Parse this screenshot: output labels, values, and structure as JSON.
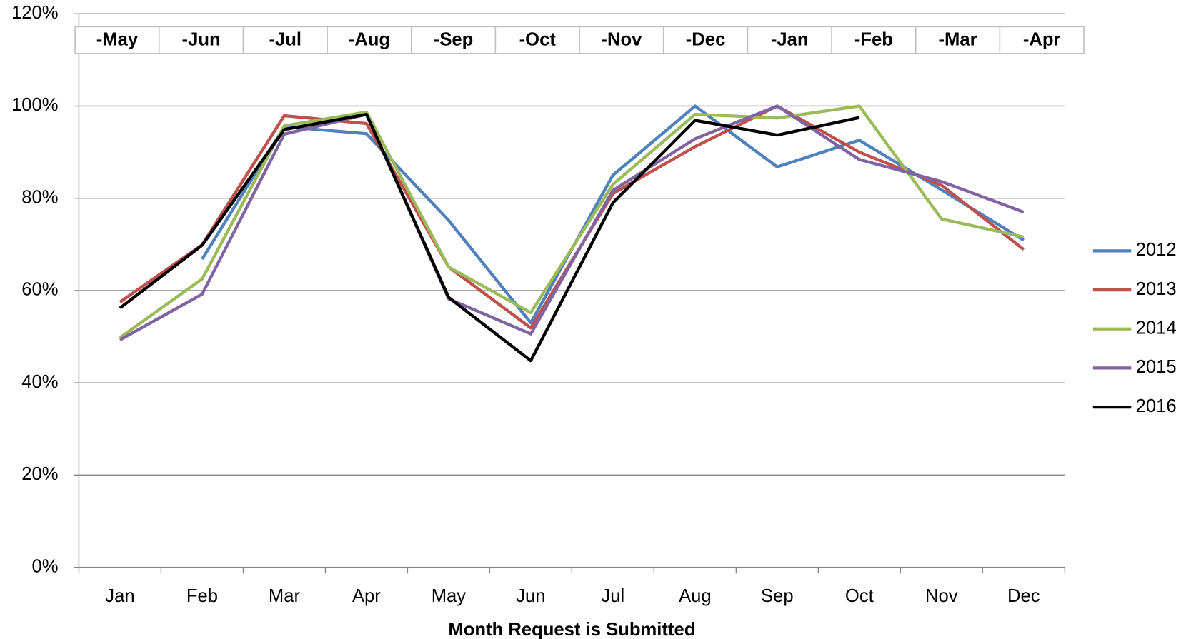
{
  "chart_data": {
    "type": "line",
    "x_label": "Month Request is Submitted",
    "top_labels": [
      "-May",
      "-Jun",
      "-Jul",
      "-Aug",
      "-Sep",
      "-Oct",
      "-Nov",
      "-Dec",
      "-Jan",
      "-Feb",
      "-Mar",
      "-Apr"
    ],
    "categories": [
      "Jan",
      "Feb",
      "Mar",
      "Apr",
      "May",
      "Jun",
      "Jul",
      "Aug",
      "Sep",
      "Oct",
      "Nov",
      "Dec"
    ],
    "series": [
      {
        "name": "2012",
        "color": "#4f81bd",
        "values": [
          null,
          66.8,
          95.5,
          94,
          75.2,
          53,
          85,
          100,
          86.8,
          92.6,
          81.8,
          70.9
        ]
      },
      {
        "name": "2013",
        "color": "#c0504d",
        "values": [
          57.5,
          69.9,
          97.9,
          96.2,
          65.1,
          51.9,
          81,
          91.2,
          100,
          90,
          82.8,
          68.9
        ]
      },
      {
        "name": "2014",
        "color": "#9bbb59",
        "values": [
          49.8,
          62.5,
          95.7,
          98.7,
          65.1,
          55.2,
          83,
          98.2,
          97.4,
          100,
          75.5,
          71.6
        ]
      },
      {
        "name": "2015",
        "color": "#8064a2",
        "values": [
          49.3,
          59.2,
          93.9,
          98.2,
          58.2,
          50.6,
          81.7,
          92.9,
          100,
          88.4,
          83.6,
          77
        ]
      },
      {
        "name": "2016",
        "color": "#000000",
        "values": [
          56.2,
          69.8,
          94.9,
          98.2,
          58.5,
          44.8,
          79,
          96.9,
          93.7,
          97.5,
          null,
          null
        ]
      }
    ],
    "ylim": [
      0,
      120
    ],
    "yticks": [
      {
        "value": 0,
        "label": "0%"
      },
      {
        "value": 20,
        "label": "20%"
      },
      {
        "value": 40,
        "label": "40%"
      },
      {
        "value": 60,
        "label": "60%"
      },
      {
        "value": 80,
        "label": "80%"
      },
      {
        "value": 100,
        "label": "100%"
      },
      {
        "value": 120,
        "label": "120%"
      }
    ],
    "grid": true,
    "legend": "right"
  }
}
